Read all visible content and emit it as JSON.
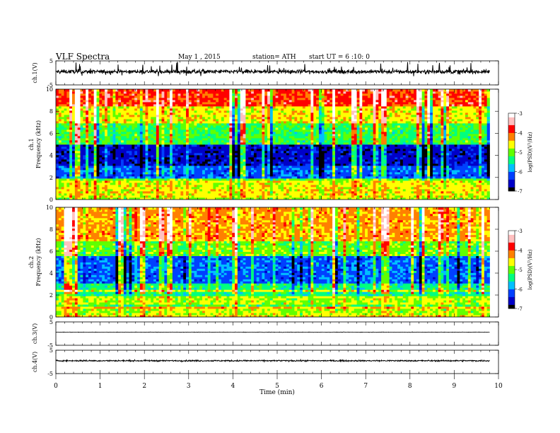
{
  "header": {
    "title": "VLF Spectra",
    "date": "May 1 , 2015",
    "station": "station= ATH",
    "start": "start UT = 6 :10: 0"
  },
  "chart_data": [
    {
      "type": "line",
      "name": "ch1-waveform",
      "ylabel": "ch.1(V)",
      "ylim": [
        -5,
        5
      ],
      "yticks": [
        "5",
        "-5"
      ],
      "xlim": [
        0,
        10
      ],
      "data_extent_min": 9.8,
      "baseline_v": 0.5,
      "noise_v": 0.7
    },
    {
      "type": "heatmap",
      "name": "ch1-spectrogram",
      "ylabel": "ch.1 Frequency (kHz)",
      "ylim": [
        0,
        10
      ],
      "yticks": [
        "0",
        "2",
        "4",
        "6",
        "8",
        "10"
      ],
      "xlim": [
        0,
        10
      ],
      "data_extent_min": 9.8,
      "colorbar": {
        "label": "log(PSD)(V²/Hz)",
        "range": [
          -7,
          -3
        ],
        "ticks": [
          "-3",
          "-4",
          "-5",
          "-6",
          "-7"
        ]
      },
      "bands": [
        {
          "from_khz": 0,
          "to_khz": 2,
          "level": -4.6
        },
        {
          "from_khz": 2,
          "to_khz": 3,
          "level": -6.1
        },
        {
          "from_khz": 3,
          "to_khz": 5,
          "level": -6.6
        },
        {
          "from_khz": 5,
          "to_khz": 7,
          "level": -5.2
        },
        {
          "from_khz": 7,
          "to_khz": 8.5,
          "level": -4.6
        },
        {
          "from_khz": 8.5,
          "to_khz": 10,
          "level": -3.9
        }
      ]
    },
    {
      "type": "heatmap",
      "name": "ch2-spectrogram",
      "ylabel": "ch.2 Frequency (kHz)",
      "ylim": [
        0,
        10
      ],
      "yticks": [
        "0",
        "2",
        "4",
        "6",
        "8",
        "10"
      ],
      "xlim": [
        0,
        10
      ],
      "data_extent_min": 9.8,
      "colorbar": {
        "label": "log(PSD)(V²/Hz)",
        "range": [
          -7,
          -3
        ],
        "ticks": [
          "-3",
          "-4",
          "-5",
          "-6",
          "-7"
        ]
      },
      "bands": [
        {
          "from_khz": 0,
          "to_khz": 2,
          "level": -4.8
        },
        {
          "from_khz": 2,
          "to_khz": 3,
          "level": -5.4
        },
        {
          "from_khz": 3,
          "to_khz": 5.5,
          "level": -6.1
        },
        {
          "from_khz": 5.5,
          "to_khz": 7,
          "level": -5.0
        },
        {
          "from_khz": 7,
          "to_khz": 10,
          "level": -4.3
        }
      ]
    },
    {
      "type": "line",
      "name": "ch3-waveform",
      "ylabel": "ch.3(V)",
      "ylim": [
        -5,
        5
      ],
      "yticks": [
        "5",
        "-5"
      ],
      "xlim": [
        0,
        10
      ],
      "data_extent_min": 9.8,
      "baseline_v": 0.6,
      "noise_v": 0.08
    },
    {
      "type": "line",
      "name": "ch4-waveform",
      "ylabel": "ch.4(V)",
      "ylim": [
        -5,
        5
      ],
      "yticks": [
        "5",
        "-5"
      ],
      "xlim": [
        0,
        10
      ],
      "data_extent_min": 9.8,
      "baseline_v": 0.5,
      "noise_v": 0.25
    }
  ],
  "xaxis": {
    "label": "Time (min)",
    "ticks": [
      "0",
      "1",
      "2",
      "3",
      "4",
      "5",
      "6",
      "7",
      "8",
      "9",
      "10"
    ]
  },
  "colormap": [
    "#000000",
    "#0000c8",
    "#0040ff",
    "#00c0ff",
    "#00ff80",
    "#60ff00",
    "#ffff00",
    "#ff8000",
    "#ff0000",
    "#ffc0c0",
    "#ffffff"
  ]
}
